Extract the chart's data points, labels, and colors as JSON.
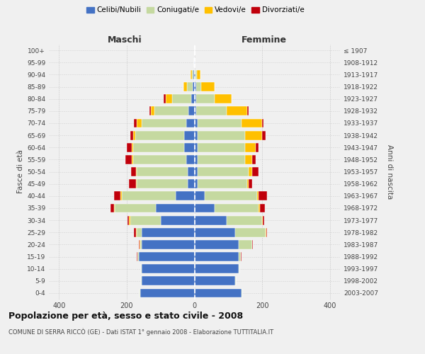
{
  "age_groups": [
    "0-4",
    "5-9",
    "10-14",
    "15-19",
    "20-24",
    "25-29",
    "30-34",
    "35-39",
    "40-44",
    "45-49",
    "50-54",
    "55-59",
    "60-64",
    "65-69",
    "70-74",
    "75-79",
    "80-84",
    "85-89",
    "90-94",
    "95-99",
    "100+"
  ],
  "birth_years": [
    "2003-2007",
    "1998-2002",
    "1993-1997",
    "1988-1992",
    "1983-1987",
    "1978-1982",
    "1973-1977",
    "1968-1972",
    "1963-1967",
    "1958-1962",
    "1953-1957",
    "1948-1952",
    "1943-1947",
    "1938-1942",
    "1933-1937",
    "1928-1932",
    "1923-1927",
    "1918-1922",
    "1913-1917",
    "1908-1912",
    "≤ 1907"
  ],
  "maschi": {
    "celibi": [
      160,
      155,
      155,
      165,
      155,
      155,
      100,
      115,
      55,
      20,
      20,
      25,
      30,
      30,
      25,
      18,
      10,
      5,
      3,
      1,
      0
    ],
    "coniugati": [
      2,
      2,
      2,
      3,
      5,
      15,
      90,
      120,
      160,
      150,
      150,
      155,
      150,
      145,
      130,
      100,
      55,
      18,
      5,
      1,
      0
    ],
    "vedovi": [
      0,
      0,
      0,
      1,
      2,
      3,
      3,
      3,
      3,
      3,
      3,
      5,
      5,
      5,
      15,
      10,
      20,
      10,
      3,
      0,
      0
    ],
    "divorziati": [
      0,
      0,
      0,
      2,
      3,
      5,
      5,
      10,
      20,
      20,
      15,
      20,
      15,
      10,
      8,
      5,
      5,
      0,
      0,
      0,
      0
    ]
  },
  "femmine": {
    "nubili": [
      140,
      120,
      130,
      130,
      130,
      120,
      95,
      60,
      30,
      10,
      10,
      10,
      10,
      10,
      10,
      5,
      5,
      5,
      3,
      1,
      0
    ],
    "coniugate": [
      2,
      2,
      3,
      8,
      40,
      90,
      105,
      130,
      155,
      145,
      150,
      140,
      140,
      140,
      130,
      90,
      55,
      15,
      5,
      1,
      0
    ],
    "vedove": [
      0,
      0,
      0,
      0,
      1,
      2,
      2,
      3,
      5,
      5,
      10,
      20,
      30,
      50,
      60,
      60,
      50,
      40,
      10,
      0,
      0
    ],
    "divorziate": [
      0,
      0,
      0,
      1,
      2,
      3,
      5,
      15,
      25,
      10,
      20,
      10,
      10,
      10,
      5,
      5,
      0,
      0,
      0,
      0,
      0
    ]
  },
  "colors": {
    "celibi": "#4472c4",
    "coniugati": "#c5d9a0",
    "vedovi": "#ffc000",
    "divorziati": "#c0000b"
  },
  "xlim": 430,
  "title": "Popolazione per età, sesso e stato civile - 2008",
  "subtitle": "COMUNE DI SERRA RICCÒ (GE) - Dati ISTAT 1° gennaio 2008 - Elaborazione TUTTITALIA.IT",
  "xlabel_left": "Maschi",
  "xlabel_right": "Femmine",
  "ylabel_left": "Fasce di età",
  "ylabel_right": "Anni di nascita",
  "bg_color": "#f0f0f0"
}
